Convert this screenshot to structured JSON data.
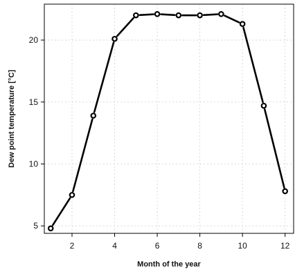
{
  "chart_data": {
    "type": "line",
    "title": "",
    "xlabel": "Month of the year",
    "ylabel": "Dew point temperature [°C]",
    "x": [
      1,
      2,
      3,
      4,
      5,
      6,
      7,
      8,
      9,
      10,
      11,
      12
    ],
    "series": [
      {
        "values": [
          4.8,
          7.5,
          13.9,
          20.1,
          22.0,
          22.1,
          22.0,
          22.0,
          22.1,
          21.3,
          14.7,
          7.8
        ]
      }
    ],
    "xlim": [
      0.7,
      12.4
    ],
    "ylim": [
      4.4,
      22.9
    ],
    "xticks": [
      2,
      4,
      6,
      8,
      10,
      12
    ],
    "yticks": [
      5,
      10,
      15,
      20
    ],
    "xtick_labels": [
      "2",
      "4",
      "6",
      "8",
      "10",
      "12"
    ],
    "ytick_labels": [
      "5",
      "10",
      "15",
      "20"
    ],
    "grid": true,
    "line_color": "#000000",
    "marker": "open-circle"
  }
}
